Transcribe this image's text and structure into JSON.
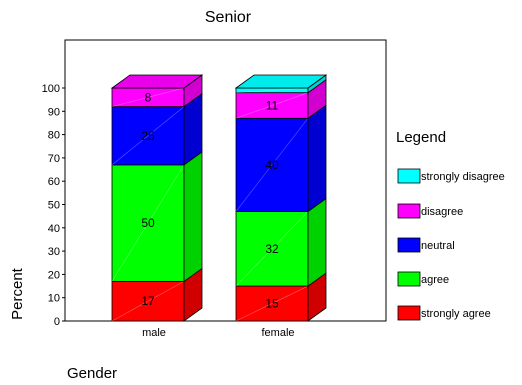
{
  "chart_data": {
    "type": "bar",
    "stacked": true,
    "title": "Senior",
    "xlabel": "Gender",
    "ylabel": "Percent",
    "ylim": [
      0,
      100
    ],
    "yticks": [
      0,
      10,
      20,
      30,
      40,
      50,
      60,
      70,
      80,
      90,
      100
    ],
    "categories": [
      "male",
      "female"
    ],
    "series": [
      {
        "name": "strongly agree",
        "color": "#ff0000",
        "values": [
          17,
          15
        ],
        "labels": [
          "17",
          "15"
        ]
      },
      {
        "name": "agree",
        "color": "#00ff00",
        "values": [
          50,
          32
        ],
        "labels": [
          "50",
          "32"
        ]
      },
      {
        "name": "neutral",
        "color": "#0000ff",
        "values": [
          25,
          40
        ],
        "labels": [
          "25",
          "40"
        ]
      },
      {
        "name": "disagree",
        "color": "#ff00ff",
        "values": [
          8,
          11
        ],
        "labels": [
          "8",
          "11"
        ]
      },
      {
        "name": "strongly disagree",
        "color": "#00ffff",
        "values": [
          0,
          2
        ],
        "labels": [
          "",
          ""
        ]
      }
    ],
    "legend": {
      "title": "Legend",
      "position": "right",
      "order": [
        "strongly disagree",
        "disagree",
        "neutral",
        "agree",
        "strongly agree"
      ]
    },
    "grid": false,
    "style": "3d-bars"
  }
}
